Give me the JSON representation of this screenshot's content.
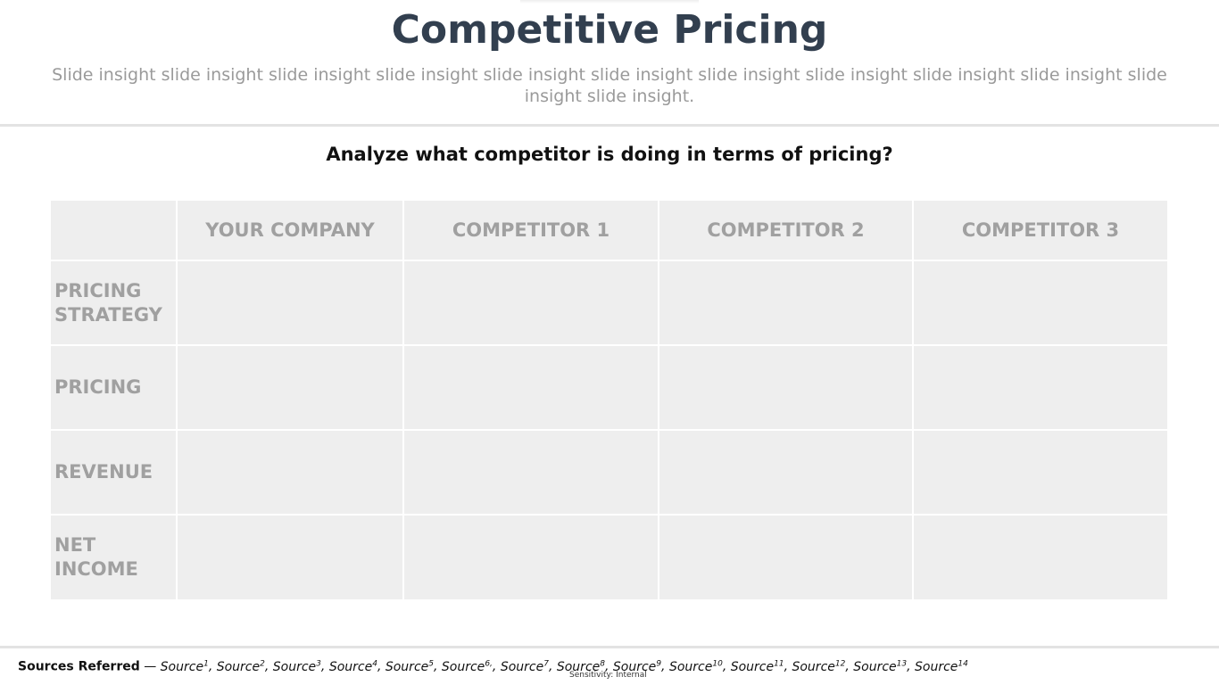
{
  "slide": {
    "title": "Competitive Pricing",
    "insight": "Slide insight slide insight slide insight slide insight slide insight slide insight slide insight slide insight slide insight slide insight slide insight slide insight.",
    "question": "Analyze what competitor is doing in terms of pricing?"
  },
  "table": {
    "columns": [
      "",
      "YOUR COMPANY",
      "COMPETITOR 1",
      "COMPETITOR 2",
      "COMPETITOR 3"
    ],
    "rows": [
      {
        "label": "PRICING STRATEGY",
        "cells": [
          "",
          "",
          "",
          ""
        ]
      },
      {
        "label": "PRICING",
        "cells": [
          "",
          "",
          "",
          ""
        ]
      },
      {
        "label": "REVENUE",
        "cells": [
          "",
          "",
          "",
          ""
        ]
      },
      {
        "label": "NET INCOME",
        "cells": [
          "",
          "",
          "",
          ""
        ]
      }
    ]
  },
  "footer": {
    "sources_label": "Sources Referred",
    "separator": " — ",
    "sources": [
      {
        "name": "Source",
        "sup": "1"
      },
      {
        "name": "Source",
        "sup": "2"
      },
      {
        "name": "Source",
        "sup": "3"
      },
      {
        "name": "Source",
        "sup": "4"
      },
      {
        "name": "Source",
        "sup": "5"
      },
      {
        "name": "Source",
        "sup": "6,"
      },
      {
        "name": "Source",
        "sup": "7"
      },
      {
        "name": "Source",
        "sup": "8"
      },
      {
        "name": "Source",
        "sup": "9"
      },
      {
        "name": "Source",
        "sup": "10"
      },
      {
        "name": "Source",
        "sup": "11"
      },
      {
        "name": "Source",
        "sup": "12"
      },
      {
        "name": "Source",
        "sup": "13"
      },
      {
        "name": "Source",
        "sup": "14"
      }
    ],
    "sensitivity": "Sensitivity: Internal"
  },
  "colors": {
    "title": "#323f4f",
    "insight": "#9a9a9a",
    "cell_bg": "#eeeeee",
    "cell_text": "#a0a0a0"
  }
}
